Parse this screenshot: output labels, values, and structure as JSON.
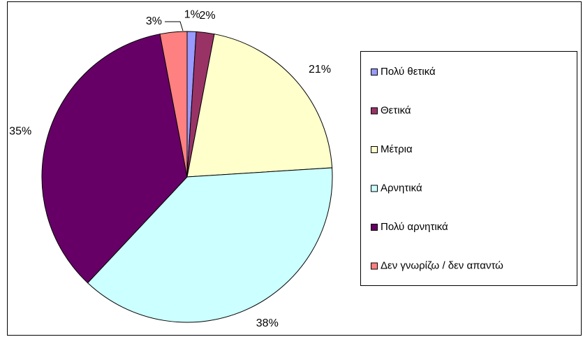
{
  "chart_data": {
    "type": "pie",
    "categories": [
      "Πολύ θετικά",
      "Θετικά",
      "Μέτρια",
      "Αρνητικά",
      "Πολύ αρνητικά",
      "Δεν γνωρίζω / δεν απαντώ"
    ],
    "values": [
      1,
      2,
      21,
      38,
      35,
      3
    ],
    "value_labels": [
      "1%",
      "2%",
      "21%",
      "38%",
      "35%",
      "3%"
    ],
    "colors": [
      "#9999ff",
      "#993366",
      "#ffffcc",
      "#ccffff",
      "#660066",
      "#ff8080"
    ],
    "legend": "right"
  }
}
